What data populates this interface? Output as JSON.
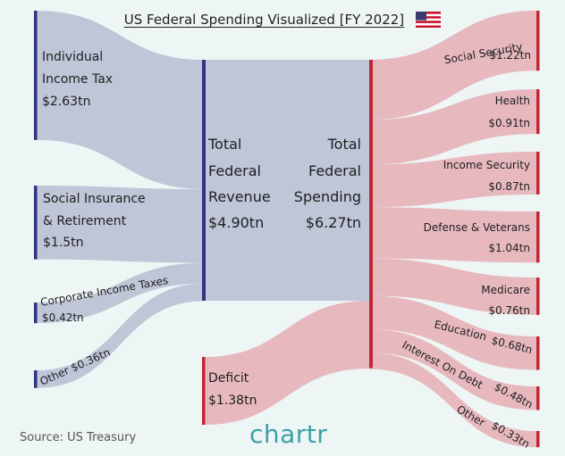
{
  "title": "US Federal Spending Visualized [FY 2022]",
  "source": "Source: US Treasury",
  "logo": "chartr",
  "colors": {
    "background": "#eef6f5",
    "revenue_flow": "#bfc6d8",
    "revenue_bar": "#2e3580",
    "spending_flow": "#e7b9bf",
    "spending_bar": "#c02734"
  },
  "chart_data": {
    "type": "sankey",
    "title": "US Federal Spending Visualized [FY 2022]",
    "units": "trillion USD",
    "sources": [
      {
        "id": "income_tax",
        "label": "Individual Income Tax",
        "value_label": "$2.63tn",
        "value": 2.63
      },
      {
        "id": "social_insurance",
        "label": "Social Insurance & Retirement",
        "value_label": "$1.5tn",
        "value": 1.5
      },
      {
        "id": "corporate",
        "label": "Corporate Income Taxes",
        "value_label": "$0.42tn",
        "value": 0.42
      },
      {
        "id": "other_rev",
        "label": "Other $0.36tn",
        "value_label": "$0.36tn",
        "value": 0.36
      }
    ],
    "revenue": {
      "label_lines": [
        "Total",
        "Federal",
        "Revenue"
      ],
      "value_label": "$4.90tn",
      "value": 4.9
    },
    "deficit": {
      "label": "Deficit",
      "value_label": "$1.38tn",
      "value": 1.38
    },
    "spending": {
      "label_lines": [
        "Total",
        "Federal",
        "Spending"
      ],
      "value_label": "$6.27tn",
      "value": 6.27
    },
    "outflows": [
      {
        "id": "social_security",
        "label": "Social Security",
        "value_label": "$1.22tn",
        "value": 1.22
      },
      {
        "id": "health",
        "label": "Health",
        "value_label": "$0.91tn",
        "value": 0.91
      },
      {
        "id": "income_security",
        "label": "Income Security",
        "value_label": "$0.87tn",
        "value": 0.87
      },
      {
        "id": "defense",
        "label": "Defense & Veterans",
        "value_label": "$1.04tn",
        "value": 1.04
      },
      {
        "id": "medicare",
        "label": "Medicare",
        "value_label": "$0.76tn",
        "value": 0.76
      },
      {
        "id": "education",
        "label": "Education",
        "value_label": "$0.68tn",
        "value": 0.68
      },
      {
        "id": "interest",
        "label": "Interest On Debt",
        "value_label": "$0.48tn",
        "value": 0.48
      },
      {
        "id": "other_spend",
        "label": "Other",
        "value_label": "$0.33tn",
        "value": 0.33
      }
    ]
  }
}
